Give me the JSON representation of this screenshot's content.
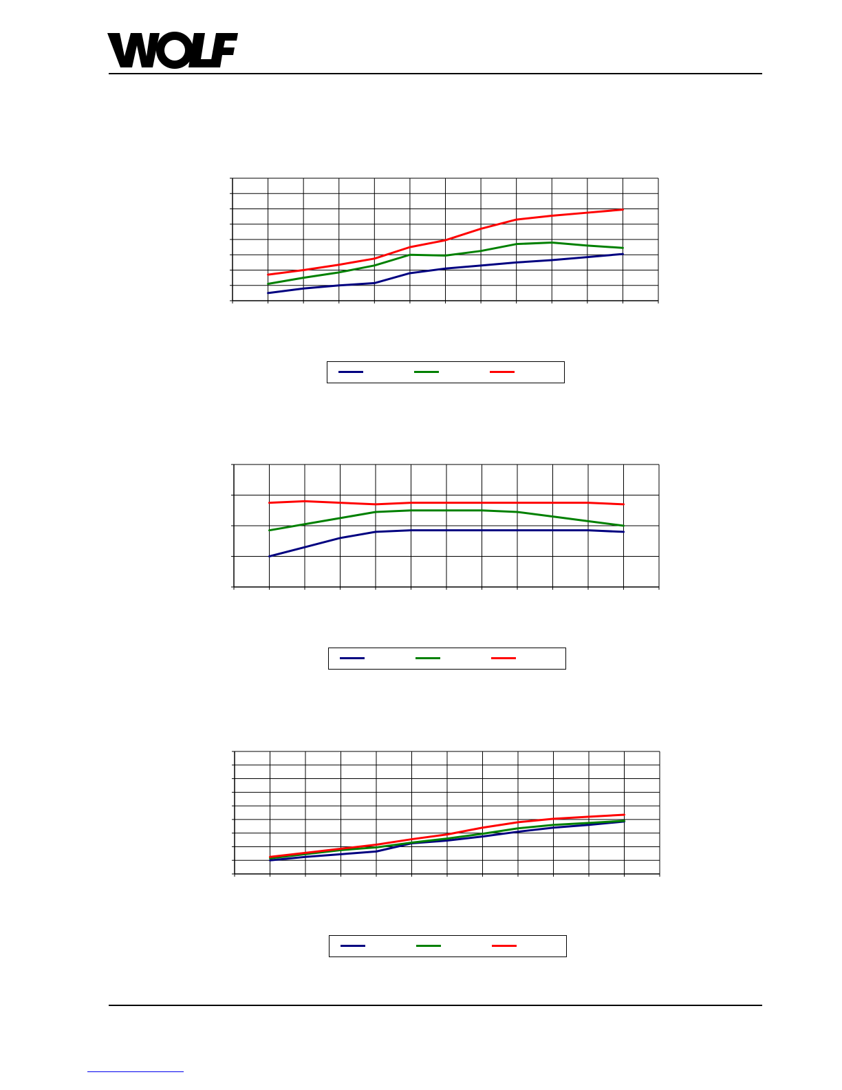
{
  "header": {
    "logo_text": "WOLF"
  },
  "chart_data": [
    {
      "type": "line",
      "x": [
        0,
        1,
        2,
        3,
        4,
        5,
        6,
        7,
        8,
        9,
        10
      ],
      "ylim": [
        0,
        8
      ],
      "grid": true,
      "legend": "bottom-center",
      "series": [
        {
          "color": "#000080",
          "values": [
            0.5,
            0.8,
            1.0,
            1.15,
            1.8,
            2.1,
            2.3,
            2.5,
            2.65,
            2.85,
            3.05
          ]
        },
        {
          "color": "#008000",
          "values": [
            1.1,
            1.5,
            1.85,
            2.3,
            3.0,
            2.95,
            3.25,
            3.7,
            3.8,
            3.6,
            3.45
          ]
        },
        {
          "color": "#ff0000",
          "values": [
            1.7,
            2.0,
            2.35,
            2.75,
            3.5,
            3.95,
            4.7,
            5.3,
            5.55,
            5.75,
            5.95
          ]
        }
      ]
    },
    {
      "type": "line",
      "x": [
        0,
        1,
        2,
        3,
        4,
        5,
        6,
        7,
        8,
        9,
        10
      ],
      "ylim": [
        0,
        4
      ],
      "grid": true,
      "legend": "bottom-center",
      "series": [
        {
          "color": "#000080",
          "values": [
            1.0,
            1.3,
            1.6,
            1.8,
            1.85,
            1.85,
            1.85,
            1.85,
            1.85,
            1.85,
            1.8
          ]
        },
        {
          "color": "#008000",
          "values": [
            1.85,
            2.05,
            2.25,
            2.45,
            2.5,
            2.5,
            2.5,
            2.45,
            2.3,
            2.15,
            2.0
          ]
        },
        {
          "color": "#ff0000",
          "values": [
            2.75,
            2.8,
            2.75,
            2.7,
            2.75,
            2.75,
            2.75,
            2.75,
            2.75,
            2.75,
            2.7
          ]
        }
      ]
    },
    {
      "type": "line",
      "x": [
        0,
        1,
        2,
        3,
        4,
        5,
        6,
        7,
        8,
        9,
        10
      ],
      "ylim": [
        0,
        9
      ],
      "grid": true,
      "legend": "bottom-center",
      "series": [
        {
          "color": "#000080",
          "values": [
            1.0,
            1.25,
            1.45,
            1.65,
            2.25,
            2.45,
            2.75,
            3.1,
            3.4,
            3.6,
            3.85
          ]
        },
        {
          "color": "#008000",
          "values": [
            1.15,
            1.45,
            1.75,
            1.95,
            2.3,
            2.6,
            2.95,
            3.35,
            3.6,
            3.75,
            3.9
          ]
        },
        {
          "color": "#ff0000",
          "values": [
            1.25,
            1.55,
            1.85,
            2.15,
            2.55,
            2.9,
            3.4,
            3.8,
            4.05,
            4.2,
            4.35
          ]
        }
      ]
    }
  ]
}
